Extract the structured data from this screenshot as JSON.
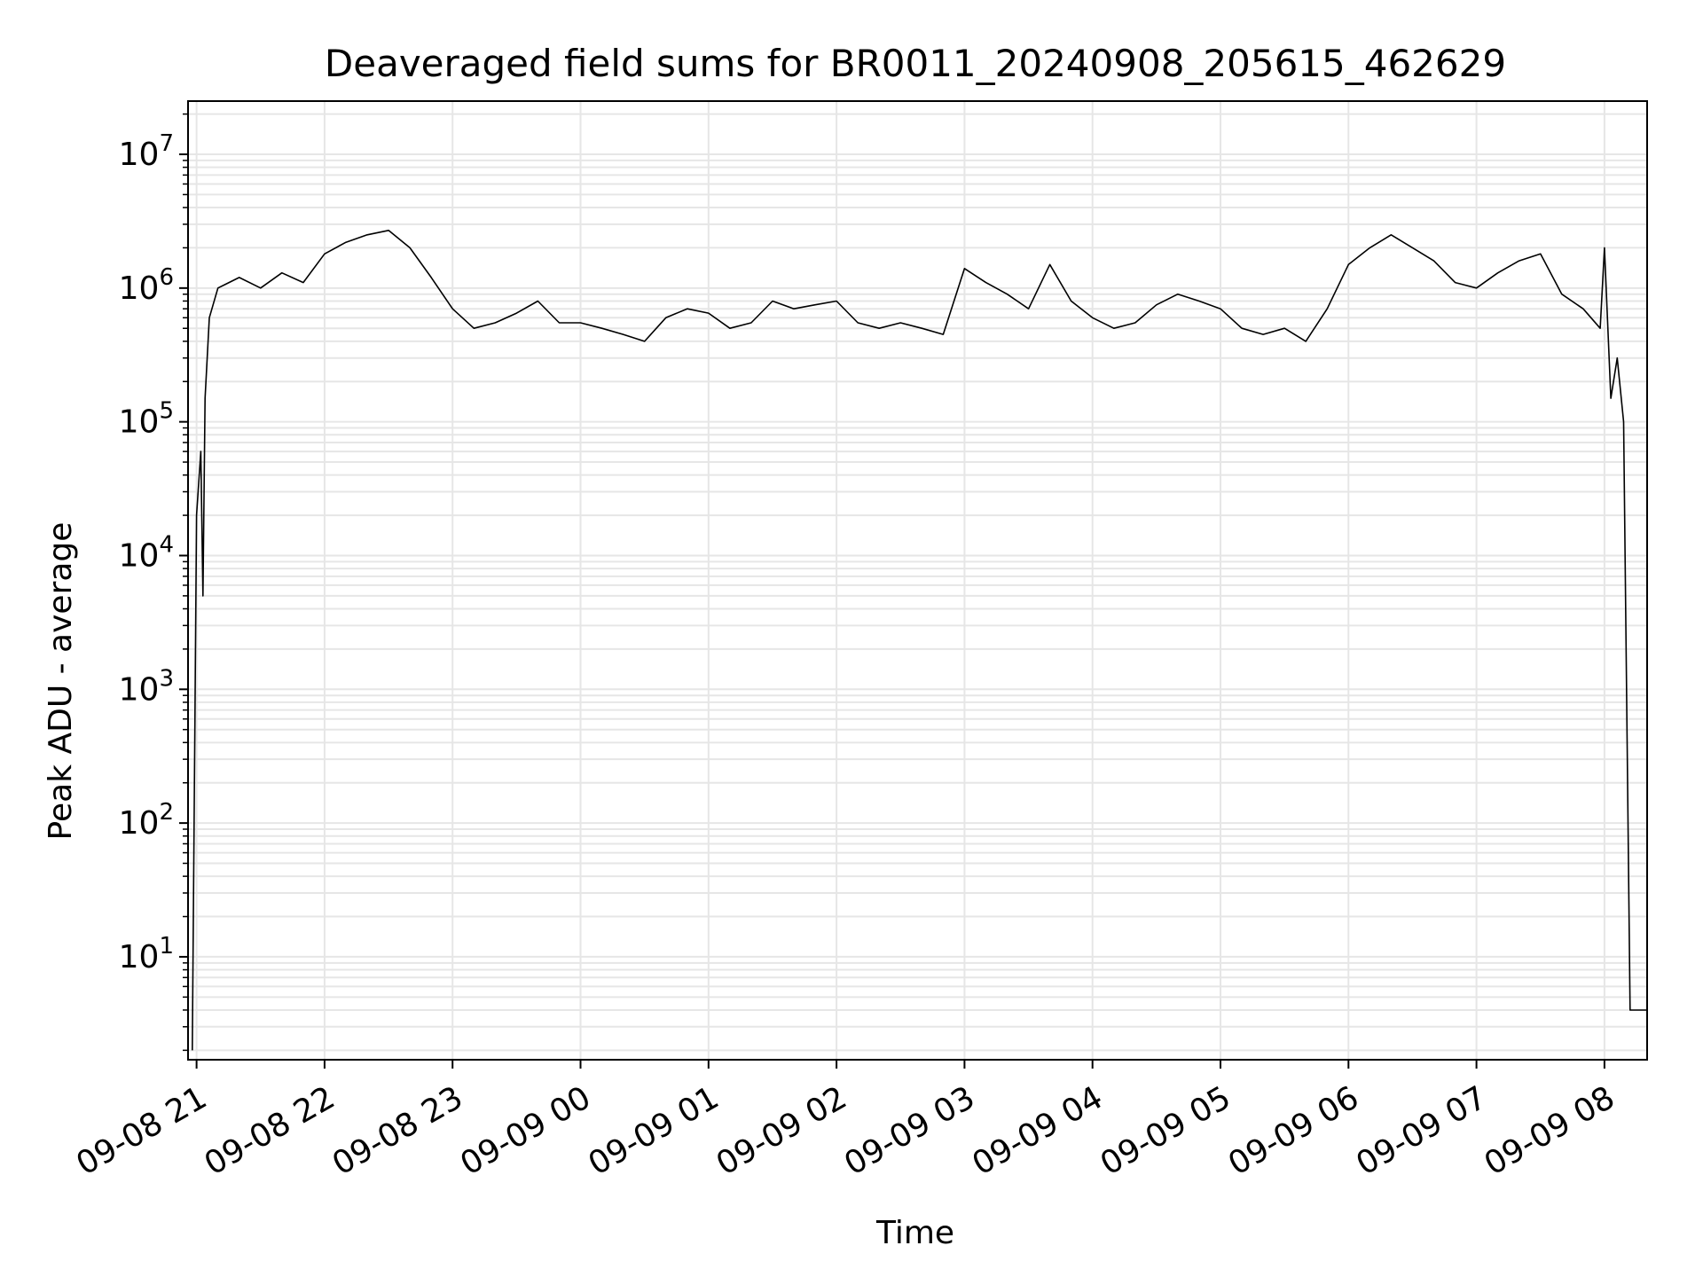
{
  "chart_data": {
    "type": "line",
    "title": "Deaveraged field sums for BR0011_20240908_205615_462629",
    "xlabel": "Time",
    "ylabel": "Peak ADU - average",
    "yscale": "log",
    "ylim": [
      1.7,
      25000000
    ],
    "xlim": [
      "2024-09-08 20:56",
      "2024-09-09 08:20"
    ],
    "x_tick_labels": [
      "09-08 21",
      "09-08 22",
      "09-08 23",
      "09-09 00",
      "09-09 01",
      "09-09 02",
      "09-09 03",
      "09-09 04",
      "09-09 05",
      "09-09 06",
      "09-09 07",
      "09-09 08"
    ],
    "x_tick_times": [
      "2024-09-08 21:00",
      "2024-09-08 22:00",
      "2024-09-08 23:00",
      "2024-09-09 00:00",
      "2024-09-09 01:00",
      "2024-09-09 02:00",
      "2024-09-09 03:00",
      "2024-09-09 04:00",
      "2024-09-09 05:00",
      "2024-09-09 06:00",
      "2024-09-09 07:00",
      "2024-09-09 08:00"
    ],
    "y_ticks": [
      {
        "value": 10,
        "base": "10",
        "exp": "1"
      },
      {
        "value": 100,
        "base": "10",
        "exp": "2"
      },
      {
        "value": 1000,
        "base": "10",
        "exp": "3"
      },
      {
        "value": 10000,
        "base": "10",
        "exp": "4"
      },
      {
        "value": 100000,
        "base": "10",
        "exp": "5"
      },
      {
        "value": 1000000,
        "base": "10",
        "exp": "6"
      },
      {
        "value": 10000000,
        "base": "10",
        "exp": "7"
      }
    ],
    "grid": true,
    "line_color": "#000000",
    "series": [
      {
        "points": [
          [
            "2024-09-08 20:58",
            2
          ],
          [
            "2024-09-08 21:00",
            20000
          ],
          [
            "2024-09-08 21:02",
            60000
          ],
          [
            "2024-09-08 21:03",
            5000
          ],
          [
            "2024-09-08 21:04",
            150000
          ],
          [
            "2024-09-08 21:06",
            600000
          ],
          [
            "2024-09-08 21:10",
            1000000
          ],
          [
            "2024-09-08 21:20",
            1200000
          ],
          [
            "2024-09-08 21:30",
            1000000
          ],
          [
            "2024-09-08 21:40",
            1300000
          ],
          [
            "2024-09-08 21:50",
            1100000
          ],
          [
            "2024-09-08 22:00",
            1800000
          ],
          [
            "2024-09-08 22:10",
            2200000
          ],
          [
            "2024-09-08 22:20",
            2500000
          ],
          [
            "2024-09-08 22:30",
            2700000
          ],
          [
            "2024-09-08 22:40",
            2000000
          ],
          [
            "2024-09-08 22:50",
            1200000
          ],
          [
            "2024-09-08 23:00",
            700000
          ],
          [
            "2024-09-08 23:10",
            500000
          ],
          [
            "2024-09-08 23:20",
            550000
          ],
          [
            "2024-09-08 23:30",
            650000
          ],
          [
            "2024-09-08 23:40",
            800000
          ],
          [
            "2024-09-08 23:50",
            550000
          ],
          [
            "2024-09-09 00:00",
            550000
          ],
          [
            "2024-09-09 00:10",
            500000
          ],
          [
            "2024-09-09 00:20",
            450000
          ],
          [
            "2024-09-09 00:30",
            400000
          ],
          [
            "2024-09-09 00:40",
            600000
          ],
          [
            "2024-09-09 00:50",
            700000
          ],
          [
            "2024-09-09 01:00",
            650000
          ],
          [
            "2024-09-09 01:10",
            500000
          ],
          [
            "2024-09-09 01:20",
            550000
          ],
          [
            "2024-09-09 01:30",
            800000
          ],
          [
            "2024-09-09 01:40",
            700000
          ],
          [
            "2024-09-09 01:50",
            750000
          ],
          [
            "2024-09-09 02:00",
            800000
          ],
          [
            "2024-09-09 02:10",
            550000
          ],
          [
            "2024-09-09 02:20",
            500000
          ],
          [
            "2024-09-09 02:30",
            550000
          ],
          [
            "2024-09-09 02:40",
            500000
          ],
          [
            "2024-09-09 02:50",
            450000
          ],
          [
            "2024-09-09 03:00",
            1400000
          ],
          [
            "2024-09-09 03:10",
            1100000
          ],
          [
            "2024-09-09 03:20",
            900000
          ],
          [
            "2024-09-09 03:30",
            700000
          ],
          [
            "2024-09-09 03:40",
            1500000
          ],
          [
            "2024-09-09 03:50",
            800000
          ],
          [
            "2024-09-09 04:00",
            600000
          ],
          [
            "2024-09-09 04:10",
            500000
          ],
          [
            "2024-09-09 04:20",
            550000
          ],
          [
            "2024-09-09 04:30",
            750000
          ],
          [
            "2024-09-09 04:40",
            900000
          ],
          [
            "2024-09-09 04:50",
            800000
          ],
          [
            "2024-09-09 05:00",
            700000
          ],
          [
            "2024-09-09 05:10",
            500000
          ],
          [
            "2024-09-09 05:20",
            450000
          ],
          [
            "2024-09-09 05:30",
            500000
          ],
          [
            "2024-09-09 05:40",
            400000
          ],
          [
            "2024-09-09 05:50",
            700000
          ],
          [
            "2024-09-09 06:00",
            1500000
          ],
          [
            "2024-09-09 06:10",
            2000000
          ],
          [
            "2024-09-09 06:20",
            2500000
          ],
          [
            "2024-09-09 06:30",
            2000000
          ],
          [
            "2024-09-09 06:40",
            1600000
          ],
          [
            "2024-09-09 06:50",
            1100000
          ],
          [
            "2024-09-09 07:00",
            1000000
          ],
          [
            "2024-09-09 07:10",
            1300000
          ],
          [
            "2024-09-09 07:20",
            1600000
          ],
          [
            "2024-09-09 07:30",
            1800000
          ],
          [
            "2024-09-09 07:40",
            900000
          ],
          [
            "2024-09-09 07:50",
            700000
          ],
          [
            "2024-09-09 07:58",
            500000
          ],
          [
            "2024-09-09 08:00",
            2000000
          ],
          [
            "2024-09-09 08:03",
            150000
          ],
          [
            "2024-09-09 08:06",
            300000
          ],
          [
            "2024-09-09 08:09",
            100000
          ],
          [
            "2024-09-09 08:12",
            4
          ],
          [
            "2024-09-09 08:20",
            4
          ]
        ]
      }
    ]
  }
}
